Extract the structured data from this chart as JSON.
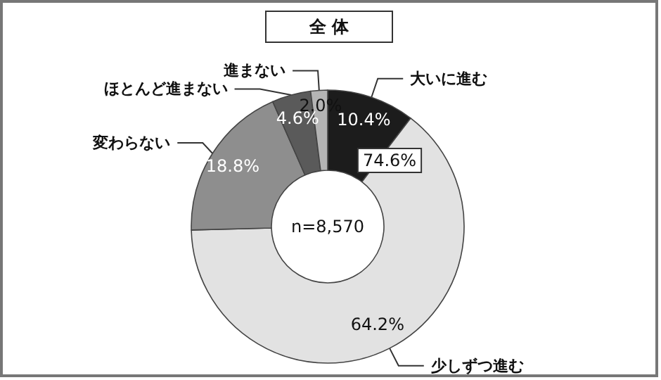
{
  "chart_data": {
    "type": "donut",
    "title": "全 体",
    "categories": [
      "大いに進む",
      "少しずつ進む",
      "変わらない",
      "ほとんど進まない",
      "進まない"
    ],
    "values": [
      10.4,
      64.2,
      18.8,
      4.6,
      2.0
    ],
    "value_labels": [
      "10.4%",
      "64.2%",
      "18.8%",
      "4.6%",
      "2.0%"
    ],
    "colors": [
      "#1c1c1c",
      "#e2e2e2",
      "#8e8e8e",
      "#5a5a5a",
      "#b4b4b4"
    ],
    "annotations": [
      "n=8,570",
      "74.6%"
    ],
    "legend": false
  }
}
